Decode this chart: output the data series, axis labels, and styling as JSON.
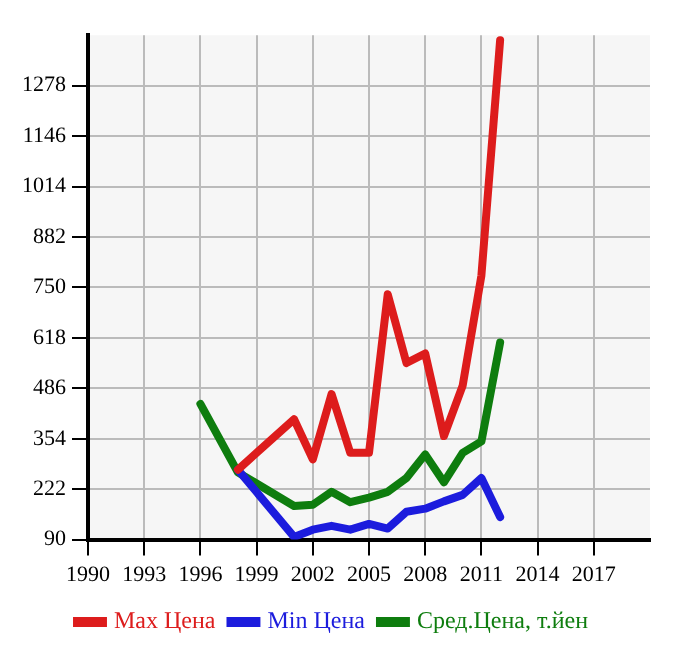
{
  "chart_data": {
    "type": "line",
    "x": [
      1998,
      2001,
      2002,
      2003,
      2004,
      2005,
      2006,
      2007,
      2008,
      2009,
      2010,
      2011,
      2012
    ],
    "series": [
      {
        "name": "Max Цена",
        "color": "#dd1c1c",
        "values": [
          273,
          405,
          300,
          471,
          317,
          317,
          732,
          552,
          577,
          361,
          493,
          781,
          1397
        ]
      },
      {
        "name": "Min Цена",
        "color": "#1c1cdd",
        "values": [
          273,
          97,
          116,
          126,
          116,
          131,
          119,
          163,
          171,
          190,
          207,
          251,
          149
        ]
      },
      {
        "name": "Сред.Цена, т.йен",
        "color": "#0e7d0e",
        "x": [
          1996,
          1998,
          2001,
          2002,
          2003,
          2004,
          2005,
          2006,
          2007,
          2008,
          2009,
          2010,
          2011,
          2012
        ],
        "values": [
          445,
          266,
          178,
          181,
          215,
          188,
          200,
          215,
          251,
          313,
          240,
          317,
          347,
          606
        ]
      }
    ],
    "xlim": [
      1990,
      2020
    ],
    "xticks": [
      1990,
      1993,
      1996,
      1999,
      2002,
      2005,
      2008,
      2011,
      2014,
      2017
    ],
    "ylim": [
      90,
      1410
    ],
    "yticks": [
      90,
      222,
      354,
      486,
      618,
      750,
      882,
      1014,
      1146,
      1278
    ],
    "grid": true,
    "legend": "bottom",
    "marker": "none",
    "line_style": "solid"
  }
}
